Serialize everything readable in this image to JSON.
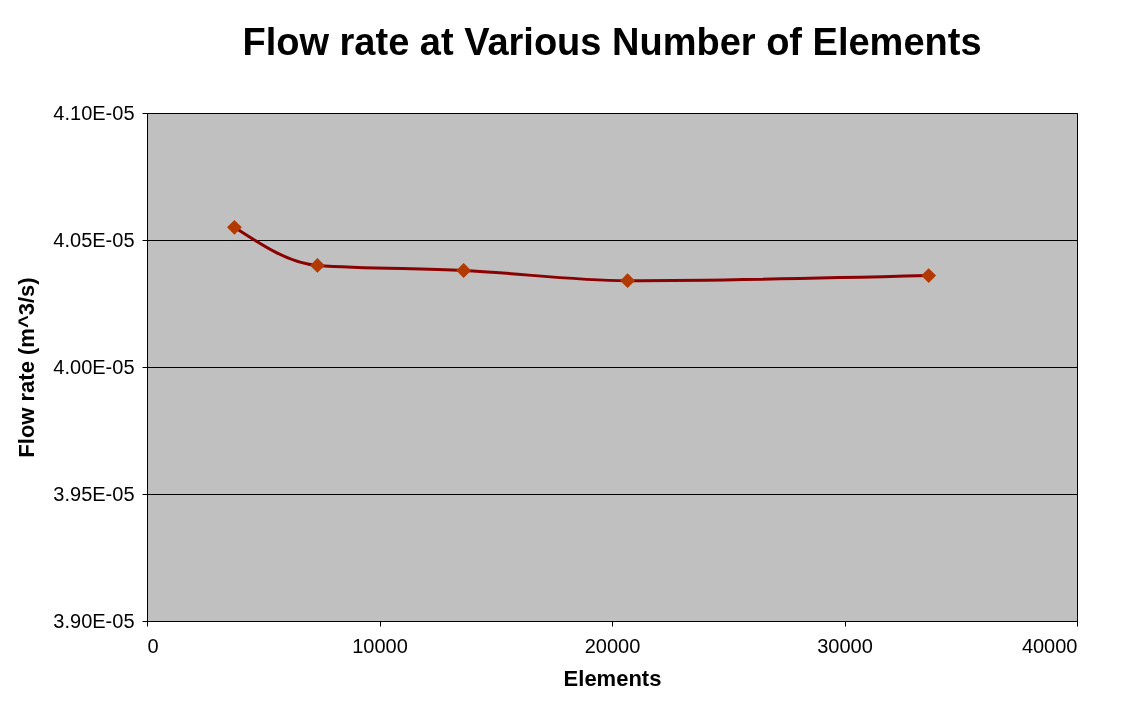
{
  "chart_data": {
    "type": "line",
    "title": "Flow rate at Various Number of Elements",
    "xlabel": "Elements",
    "ylabel": "Flow rate (m^3/s)",
    "x": [
      3760,
      7330,
      13620,
      20670,
      33620
    ],
    "series": [
      {
        "color": "#8b0000",
        "values": [
          4.055e-05,
          4.04e-05,
          4.038e-05,
          4.034e-05,
          4.036e-05
        ]
      }
    ],
    "xlim": [
      0,
      40000
    ],
    "xticks": [
      0,
      10000,
      20000,
      30000,
      40000
    ],
    "ylim": [
      3.9e-05,
      4.1e-05
    ],
    "yticks": [
      {
        "value": 3.9e-05,
        "label": "3.90E-05"
      },
      {
        "value": 3.95e-05,
        "label": "3.95E-05"
      },
      {
        "value": 4e-05,
        "label": "4.00E-05"
      },
      {
        "value": 4.05e-05,
        "label": "4.05E-05"
      },
      {
        "value": 4.1e-05,
        "label": "4.10E-05"
      }
    ],
    "grid": "y",
    "marker": "diamond",
    "line_style": "solid"
  }
}
